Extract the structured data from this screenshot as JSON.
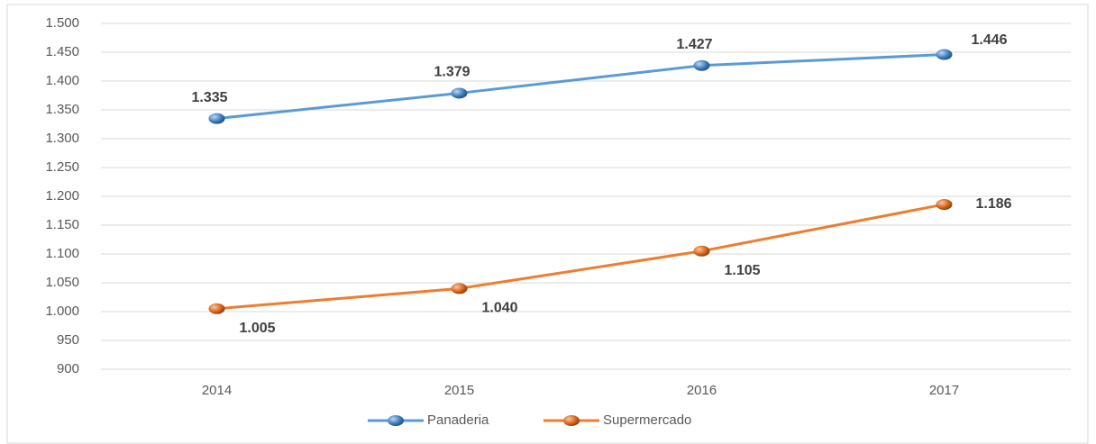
{
  "chart_data": {
    "type": "line",
    "categories": [
      "2014",
      "2015",
      "2016",
      "2017"
    ],
    "series": [
      {
        "name": "Panaderia",
        "color": "#5b9bd5",
        "values": [
          1335,
          1379,
          1427,
          1446
        ],
        "value_labels": [
          "1.335",
          "1.379",
          "1.427",
          "1.446"
        ]
      },
      {
        "name": "Supermercado",
        "color": "#ed7d31",
        "values": [
          1005,
          1040,
          1105,
          1186
        ],
        "value_labels": [
          "1.005",
          "1.040",
          "1.105",
          "1.186"
        ]
      }
    ],
    "ylim": [
      900,
      1500
    ],
    "yticks": [
      900,
      950,
      {
        "value": 1000,
        "label": "1.000"
      },
      {
        "value": 1050,
        "label": "1.050"
      },
      {
        "value": 1100,
        "label": "1.100"
      },
      {
        "value": 1150,
        "label": "1.150"
      },
      {
        "value": 1200,
        "label": "1.200"
      },
      {
        "value": 1250,
        "label": "1.250"
      },
      {
        "value": 1300,
        "label": "1.300"
      },
      {
        "value": 1350,
        "label": "1.350"
      },
      {
        "value": 1400,
        "label": "1.400"
      },
      {
        "value": 1450,
        "label": "1.450"
      },
      {
        "value": 1500,
        "label": "1.500"
      }
    ],
    "grid": true,
    "legend": "bottom"
  }
}
